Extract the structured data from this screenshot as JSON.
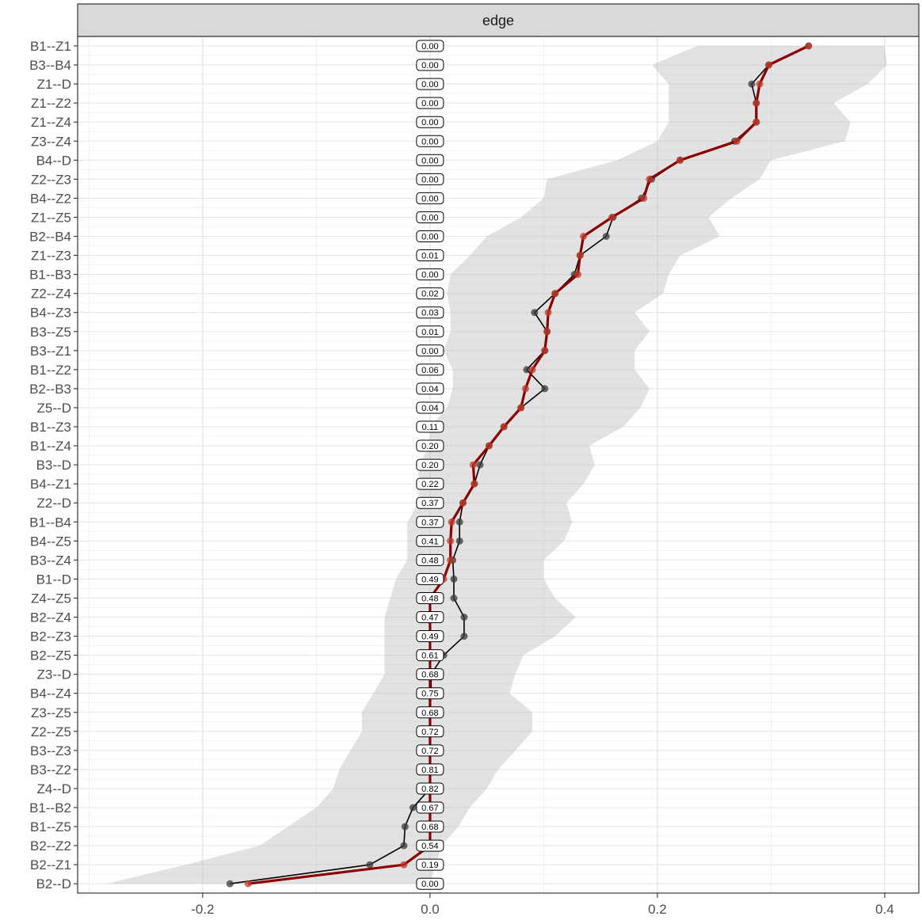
{
  "chart_data": {
    "type": "line",
    "facet_label": "edge",
    "xlim": [
      -0.31,
      0.43
    ],
    "x_ticks": [
      -0.2,
      0.0,
      0.2,
      0.4
    ],
    "x_tick_labels": [
      "-0.2",
      "0.0",
      "0.2",
      "0.4"
    ],
    "grid": true,
    "categories": [
      "B1--Z1",
      "B3--B4",
      "Z1--D",
      "Z1--Z2",
      "Z1--Z4",
      "Z3--Z4",
      "B4--D",
      "Z2--Z3",
      "B4--Z2",
      "Z1--Z5",
      "B2--B4",
      "Z1--Z3",
      "B1--B3",
      "Z2--Z4",
      "B4--Z3",
      "B3--Z5",
      "B3--Z1",
      "B1--Z2",
      "B2--B3",
      "Z5--D",
      "B1--Z3",
      "B1--Z4",
      "B3--D",
      "B4--Z1",
      "Z2--D",
      "B1--B4",
      "B4--Z5",
      "B3--Z4",
      "B1--D",
      "Z4--Z5",
      "B2--Z4",
      "B2--Z3",
      "B2--Z5",
      "Z3--D",
      "B4--Z4",
      "Z3--Z5",
      "Z2--Z5",
      "B3--Z3",
      "B3--Z2",
      "Z4--D",
      "B1--B2",
      "B1--Z5",
      "B2--Z2",
      "B2--Z1",
      "B2--D"
    ],
    "p_labels": [
      "0.00",
      "0.00",
      "0.00",
      "0.00",
      "0.00",
      "0.00",
      "0.00",
      "0.00",
      "0.00",
      "0.00",
      "0.00",
      "0.01",
      "0.00",
      "0.02",
      "0.03",
      "0.01",
      "0.00",
      "0.06",
      "0.04",
      "0.04",
      "0.11",
      "0.20",
      "0.20",
      "0.22",
      "0.37",
      "0.37",
      "0.41",
      "0.48",
      "0.49",
      "0.48",
      "0.47",
      "0.49",
      "0.61",
      "0.68",
      "0.75",
      "0.68",
      "0.72",
      "0.72",
      "0.81",
      "0.82",
      "0.67",
      "0.68",
      "0.54",
      "0.19",
      "0.00"
    ],
    "series": [
      {
        "role": "black",
        "color": "#000000",
        "values": [
          0.333,
          0.298,
          0.283,
          0.287,
          0.287,
          0.268,
          0.22,
          0.195,
          0.186,
          0.161,
          0.155,
          0.132,
          0.127,
          0.11,
          0.092,
          0.103,
          0.101,
          0.085,
          0.101,
          0.08,
          0.065,
          0.052,
          0.044,
          0.039,
          0.029,
          0.026,
          0.026,
          0.02,
          0.021,
          0.021,
          0.03,
          0.03,
          0.012,
          0.001,
          0.001,
          0.0,
          0.0,
          0.0,
          0.0,
          0.0,
          -0.015,
          -0.022,
          -0.023,
          -0.053,
          -0.176
        ]
      },
      {
        "role": "red",
        "color": "#8b0000",
        "values": [
          0.333,
          0.298,
          0.29,
          0.287,
          0.287,
          0.27,
          0.22,
          0.193,
          0.188,
          0.16,
          0.135,
          0.132,
          0.13,
          0.11,
          0.104,
          0.103,
          0.101,
          0.09,
          0.084,
          0.08,
          0.065,
          0.052,
          0.038,
          0.039,
          0.029,
          0.019,
          0.018,
          0.018,
          0.012,
          0.0,
          0.0,
          0.0,
          0.0,
          0.0,
          0.0,
          0.0,
          0.0,
          0.0,
          0.0,
          0.0,
          0.0,
          0.0,
          0.0,
          -0.023,
          -0.16
        ]
      }
    ],
    "ribbon_lower": [
      0.235,
      0.195,
      0.21,
      0.21,
      0.21,
      0.2,
      0.165,
      0.103,
      0.1,
      0.08,
      0.05,
      0.035,
      0.018,
      0.015,
      0.018,
      0.018,
      0.012,
      0.02,
      0.02,
      0.015,
      0.0,
      0.0,
      -0.01,
      -0.01,
      -0.01,
      -0.02,
      -0.02,
      -0.02,
      -0.03,
      -0.035,
      -0.04,
      -0.04,
      -0.04,
      -0.04,
      -0.05,
      -0.06,
      -0.06,
      -0.07,
      -0.08,
      -0.085,
      -0.1,
      -0.125,
      -0.15,
      -0.215,
      -0.285
    ],
    "ribbon_upper": [
      0.4,
      0.402,
      0.385,
      0.355,
      0.37,
      0.365,
      0.3,
      0.29,
      0.265,
      0.245,
      0.255,
      0.22,
      0.21,
      0.205,
      0.18,
      0.193,
      0.18,
      0.18,
      0.193,
      0.185,
      0.17,
      0.14,
      0.145,
      0.135,
      0.12,
      0.125,
      0.118,
      0.1,
      0.1,
      0.11,
      0.128,
      0.11,
      0.082,
      0.075,
      0.07,
      0.09,
      0.09,
      0.075,
      0.06,
      0.05,
      0.035,
      0.025,
      0.01,
      0.005,
      0.0
    ]
  }
}
